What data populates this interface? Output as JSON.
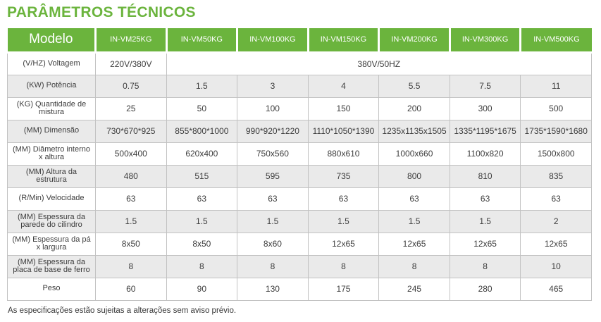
{
  "page": {
    "title": "PARÂMETROS TÉCNICOS",
    "footnote": "As especificações estão sujeitas a alterações sem aviso prévio."
  },
  "colors": {
    "accent_green": "#6bb43d",
    "alt_row_gray": "#eaeaea",
    "cell_border_gray": "#c2c2c2",
    "text_dark": "#3d3d3d"
  },
  "table": {
    "corner_label": "Modelo",
    "models": [
      "IN-VM25KG",
      "IN-VM50KG",
      "IN-VM100KG",
      "IN-VM150KG",
      "IN-VM200KG",
      "IN-VM300KG",
      "IN-VM500KG"
    ],
    "voltage_row": {
      "label": "(V/HZ) Voltagem",
      "first_value": "220V/380V",
      "merged_value": "380V/50HZ"
    },
    "rows": [
      {
        "label": "(KW) Potência",
        "values": [
          "0.75",
          "1.5",
          "3",
          "4",
          "5.5",
          "7.5",
          "11"
        ]
      },
      {
        "label": "(KG) Quantidade de mistura",
        "values": [
          "25",
          "50",
          "100",
          "150",
          "200",
          "300",
          "500"
        ]
      },
      {
        "label": "(MM) Dimensão",
        "values": [
          "730*670*925",
          "855*800*1000",
          "990*920*1220",
          "1110*1050*1390",
          "1235x1135x1505",
          "1335*1195*1675",
          "1735*1590*1680"
        ]
      },
      {
        "label": "(MM) Diâmetro interno x altura",
        "values": [
          "500x400",
          "620x400",
          "750x560",
          "880x610",
          "1000x660",
          "1100x820",
          "1500x800"
        ]
      },
      {
        "label": "(MM) Altura da estrutura",
        "values": [
          "480",
          "515",
          "595",
          "735",
          "800",
          "810",
          "835"
        ]
      },
      {
        "label": "(R/Min) Velocidade",
        "values": [
          "63",
          "63",
          "63",
          "63",
          "63",
          "63",
          "63"
        ]
      },
      {
        "label": "(MM) Espessura da parede do cilindro",
        "values": [
          "1.5",
          "1.5",
          "1.5",
          "1.5",
          "1.5",
          "1.5",
          "2"
        ]
      },
      {
        "label": "(MM) Espessura da pá x largura",
        "values": [
          "8x50",
          "8x50",
          "8x60",
          "12x65",
          "12x65",
          "12x65",
          "12x65"
        ]
      },
      {
        "label": "(MM) Espessura da placa de base de ferro",
        "values": [
          "8",
          "8",
          "8",
          "8",
          "8",
          "8",
          "10"
        ]
      },
      {
        "label": "Peso",
        "values": [
          "60",
          "90",
          "130",
          "175",
          "245",
          "280",
          "465"
        ]
      }
    ]
  }
}
